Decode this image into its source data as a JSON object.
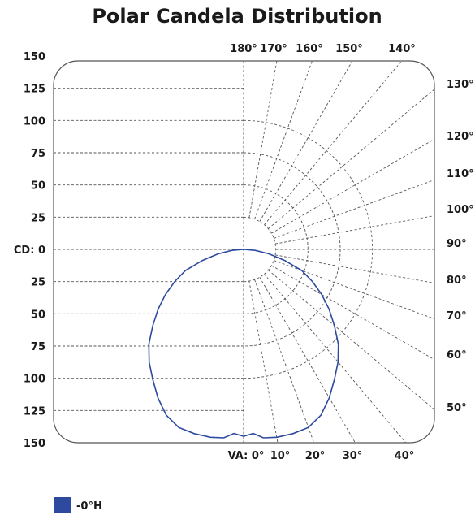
{
  "chart_data": {
    "type": "polar",
    "title": "Polar Candela Distribution",
    "candela_axis": {
      "prefix": "CD:",
      "ticks": [
        150,
        125,
        100,
        75,
        50,
        25,
        0,
        25,
        50,
        75,
        100,
        125,
        150
      ],
      "range": [
        0,
        150
      ]
    },
    "vertical_angle_prefix": "VA:",
    "angle_ticks_top": [
      "180°",
      "170°",
      "160°",
      "150°",
      "140°"
    ],
    "angle_ticks_right": [
      "130°",
      "120°",
      "110°",
      "100°",
      "90°",
      "80°",
      "70°",
      "60°",
      "50°"
    ],
    "angle_ticks_bottom": [
      "0°",
      "10°",
      "20°",
      "30°",
      "40°"
    ],
    "grid": true,
    "legend_position": "bottom-left",
    "series": [
      {
        "name": "-0°H",
        "color": "#2e4a9e",
        "symmetric": true,
        "angles": [
          0,
          3,
          6,
          10,
          15,
          20,
          25,
          30,
          35,
          40,
          45,
          50,
          55,
          60,
          65,
          70,
          75,
          80,
          85,
          90
        ],
        "candela": [
          145,
          143,
          147,
          148,
          148,
          147,
          142,
          133,
          123,
          114,
          104,
          92,
          81,
          70,
          59,
          48,
          33,
          20,
          9,
          0
        ]
      }
    ]
  }
}
